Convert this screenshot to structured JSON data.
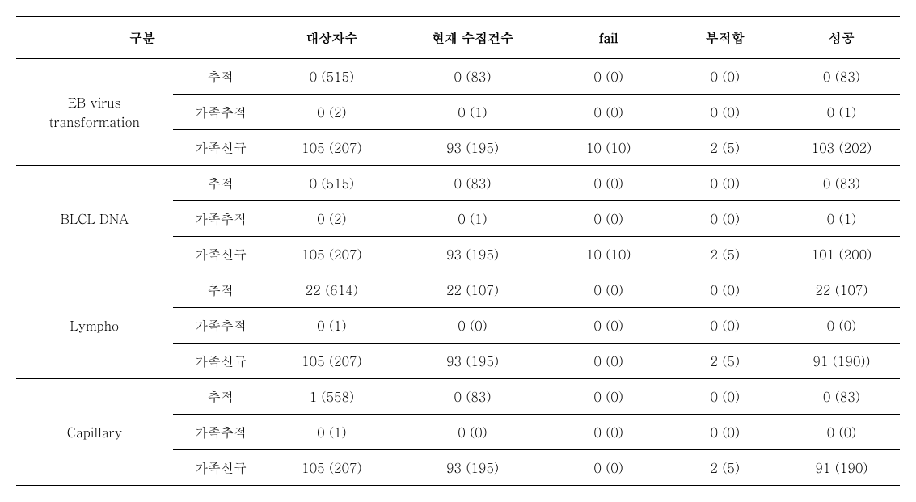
{
  "columns": {
    "gubun": "구분",
    "daesang": "대상자수",
    "hyunjae": "현재 수집건수",
    "fail": "fail",
    "bujeokhap": "부적합",
    "seonggong": "성공"
  },
  "groups": [
    {
      "label": "EB virus\ntransformation",
      "rows": [
        {
          "sub": "추적",
          "daesang": "0 (515)",
          "hyunjae": "0 (83)",
          "fail": "0 (0)",
          "bujeok": "0 (0)",
          "seong": "0 (83)"
        },
        {
          "sub": "가족추적",
          "daesang": "0 (2)",
          "hyunjae": "0 (1)",
          "fail": "0 (0)",
          "bujeok": "0 (0)",
          "seong": "0 (1)"
        },
        {
          "sub": "가족신규",
          "daesang": "105 (207)",
          "hyunjae": "93 (195)",
          "fail": "10 (10)",
          "bujeok": "2 (5)",
          "seong": "103 (202)"
        }
      ]
    },
    {
      "label": "BLCL DNA",
      "rows": [
        {
          "sub": "추적",
          "daesang": "0 (515)",
          "hyunjae": "0 (83)",
          "fail": "0 (0)",
          "bujeok": "0 (0)",
          "seong": "0 (83)"
        },
        {
          "sub": "가족추적",
          "daesang": "0 (2)",
          "hyunjae": "0 (1)",
          "fail": "0 (0)",
          "bujeok": "0 (0)",
          "seong": "0 (1)"
        },
        {
          "sub": "가족신규",
          "daesang": "105 (207)",
          "hyunjae": "93 (195)",
          "fail": "10 (10)",
          "bujeok": "2 (5)",
          "seong": "101 (200)"
        }
      ]
    },
    {
      "label": "Lympho",
      "rows": [
        {
          "sub": "추적",
          "daesang": "22 (614)",
          "hyunjae": "22 (107)",
          "fail": "0 (0)",
          "bujeok": "0 (0)",
          "seong": "22 (107)"
        },
        {
          "sub": "가족추적",
          "daesang": "0 (1)",
          "hyunjae": "0 (0)",
          "fail": "0 (0)",
          "bujeok": "0 (0)",
          "seong": "0 (0)"
        },
        {
          "sub": "가족신규",
          "daesang": "105 (207)",
          "hyunjae": "93 (195)",
          "fail": "0 (0)",
          "bujeok": "2 (5)",
          "seong": "91 (190))"
        }
      ]
    },
    {
      "label": "Capillary",
      "rows": [
        {
          "sub": "추적",
          "daesang": "1 (558)",
          "hyunjae": "0 (83)",
          "fail": "0 (0)",
          "bujeok": "0 (0)",
          "seong": "0 (83)"
        },
        {
          "sub": "가족추적",
          "daesang": "0 (1)",
          "hyunjae": "0 (0)",
          "fail": "0 (0)",
          "bujeok": "0 (0)",
          "seong": "0 (0)"
        },
        {
          "sub": "가족신규",
          "daesang": "105 (207)",
          "hyunjae": "93 (195)",
          "fail": "0 (0)",
          "bujeok": "2 (5)",
          "seong": "91 (190)"
        }
      ]
    }
  ]
}
